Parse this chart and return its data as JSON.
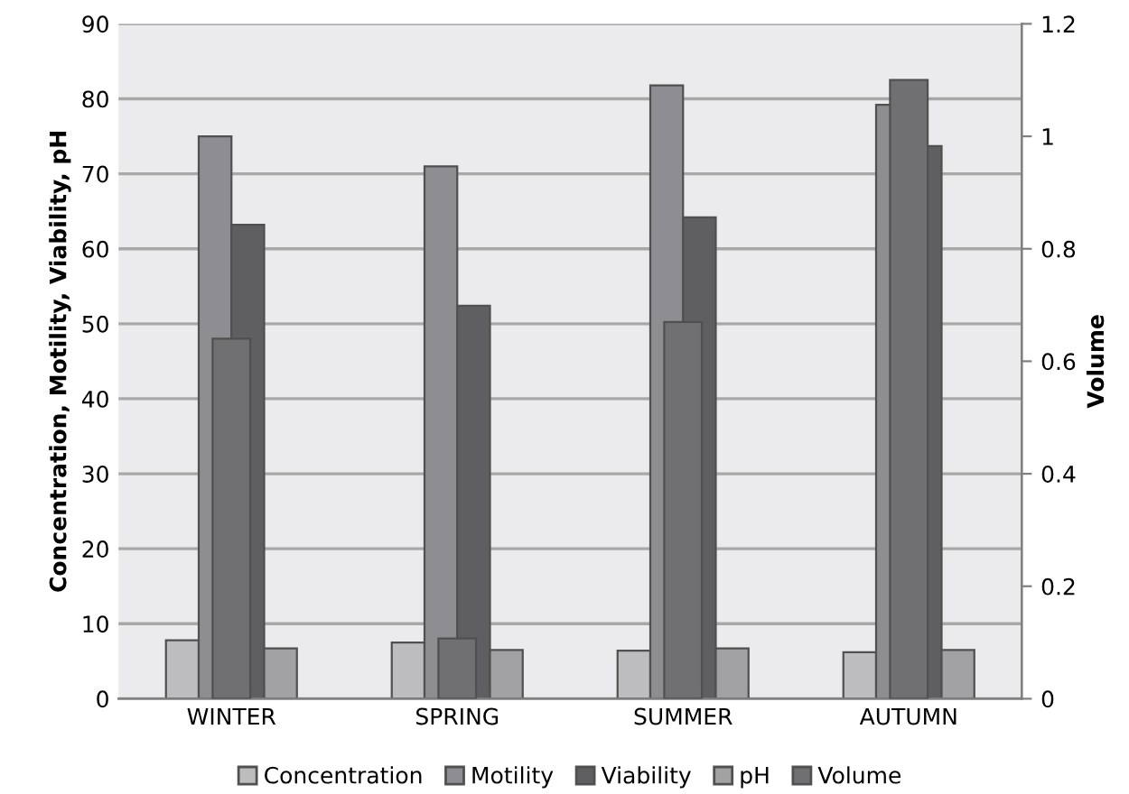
{
  "chart_data": {
    "type": "bar",
    "ylabel": "Concentration, Motility, Viability, pH",
    "y2label": "Volume",
    "categories": [
      "WINTER",
      "SPRING",
      "SUMMER",
      "AUTUMN"
    ],
    "series": [
      {
        "name": "Concentration",
        "color": "#bdbdc0",
        "values": [
          7.8,
          7.5,
          6.4,
          6.2
        ]
      },
      {
        "name": "Motility",
        "color": "#8e8e92",
        "values": [
          75,
          71,
          81.8,
          79.2
        ]
      },
      {
        "name": "Viability",
        "color": "#5f5f62",
        "values": [
          63.2,
          52.4,
          64.2,
          73.7
        ]
      },
      {
        "name": "pH",
        "color": "#a2a2a5",
        "values": [
          6.7,
          6.5,
          6.7,
          6.5
        ]
      },
      {
        "name": "Volume",
        "color": "#707073",
        "axis": "y2",
        "values": [
          0.64,
          0.107,
          0.67,
          1.1
        ]
      }
    ],
    "ylim": [
      0,
      90
    ],
    "yticks": [
      0,
      10,
      20,
      30,
      40,
      50,
      60,
      70,
      80,
      90
    ],
    "y2lim": [
      0,
      1.2
    ],
    "y2ticks": [
      0,
      0.2,
      0.4,
      0.6,
      0.8,
      1,
      1.2
    ],
    "grid": "y",
    "legend": "bottom"
  }
}
